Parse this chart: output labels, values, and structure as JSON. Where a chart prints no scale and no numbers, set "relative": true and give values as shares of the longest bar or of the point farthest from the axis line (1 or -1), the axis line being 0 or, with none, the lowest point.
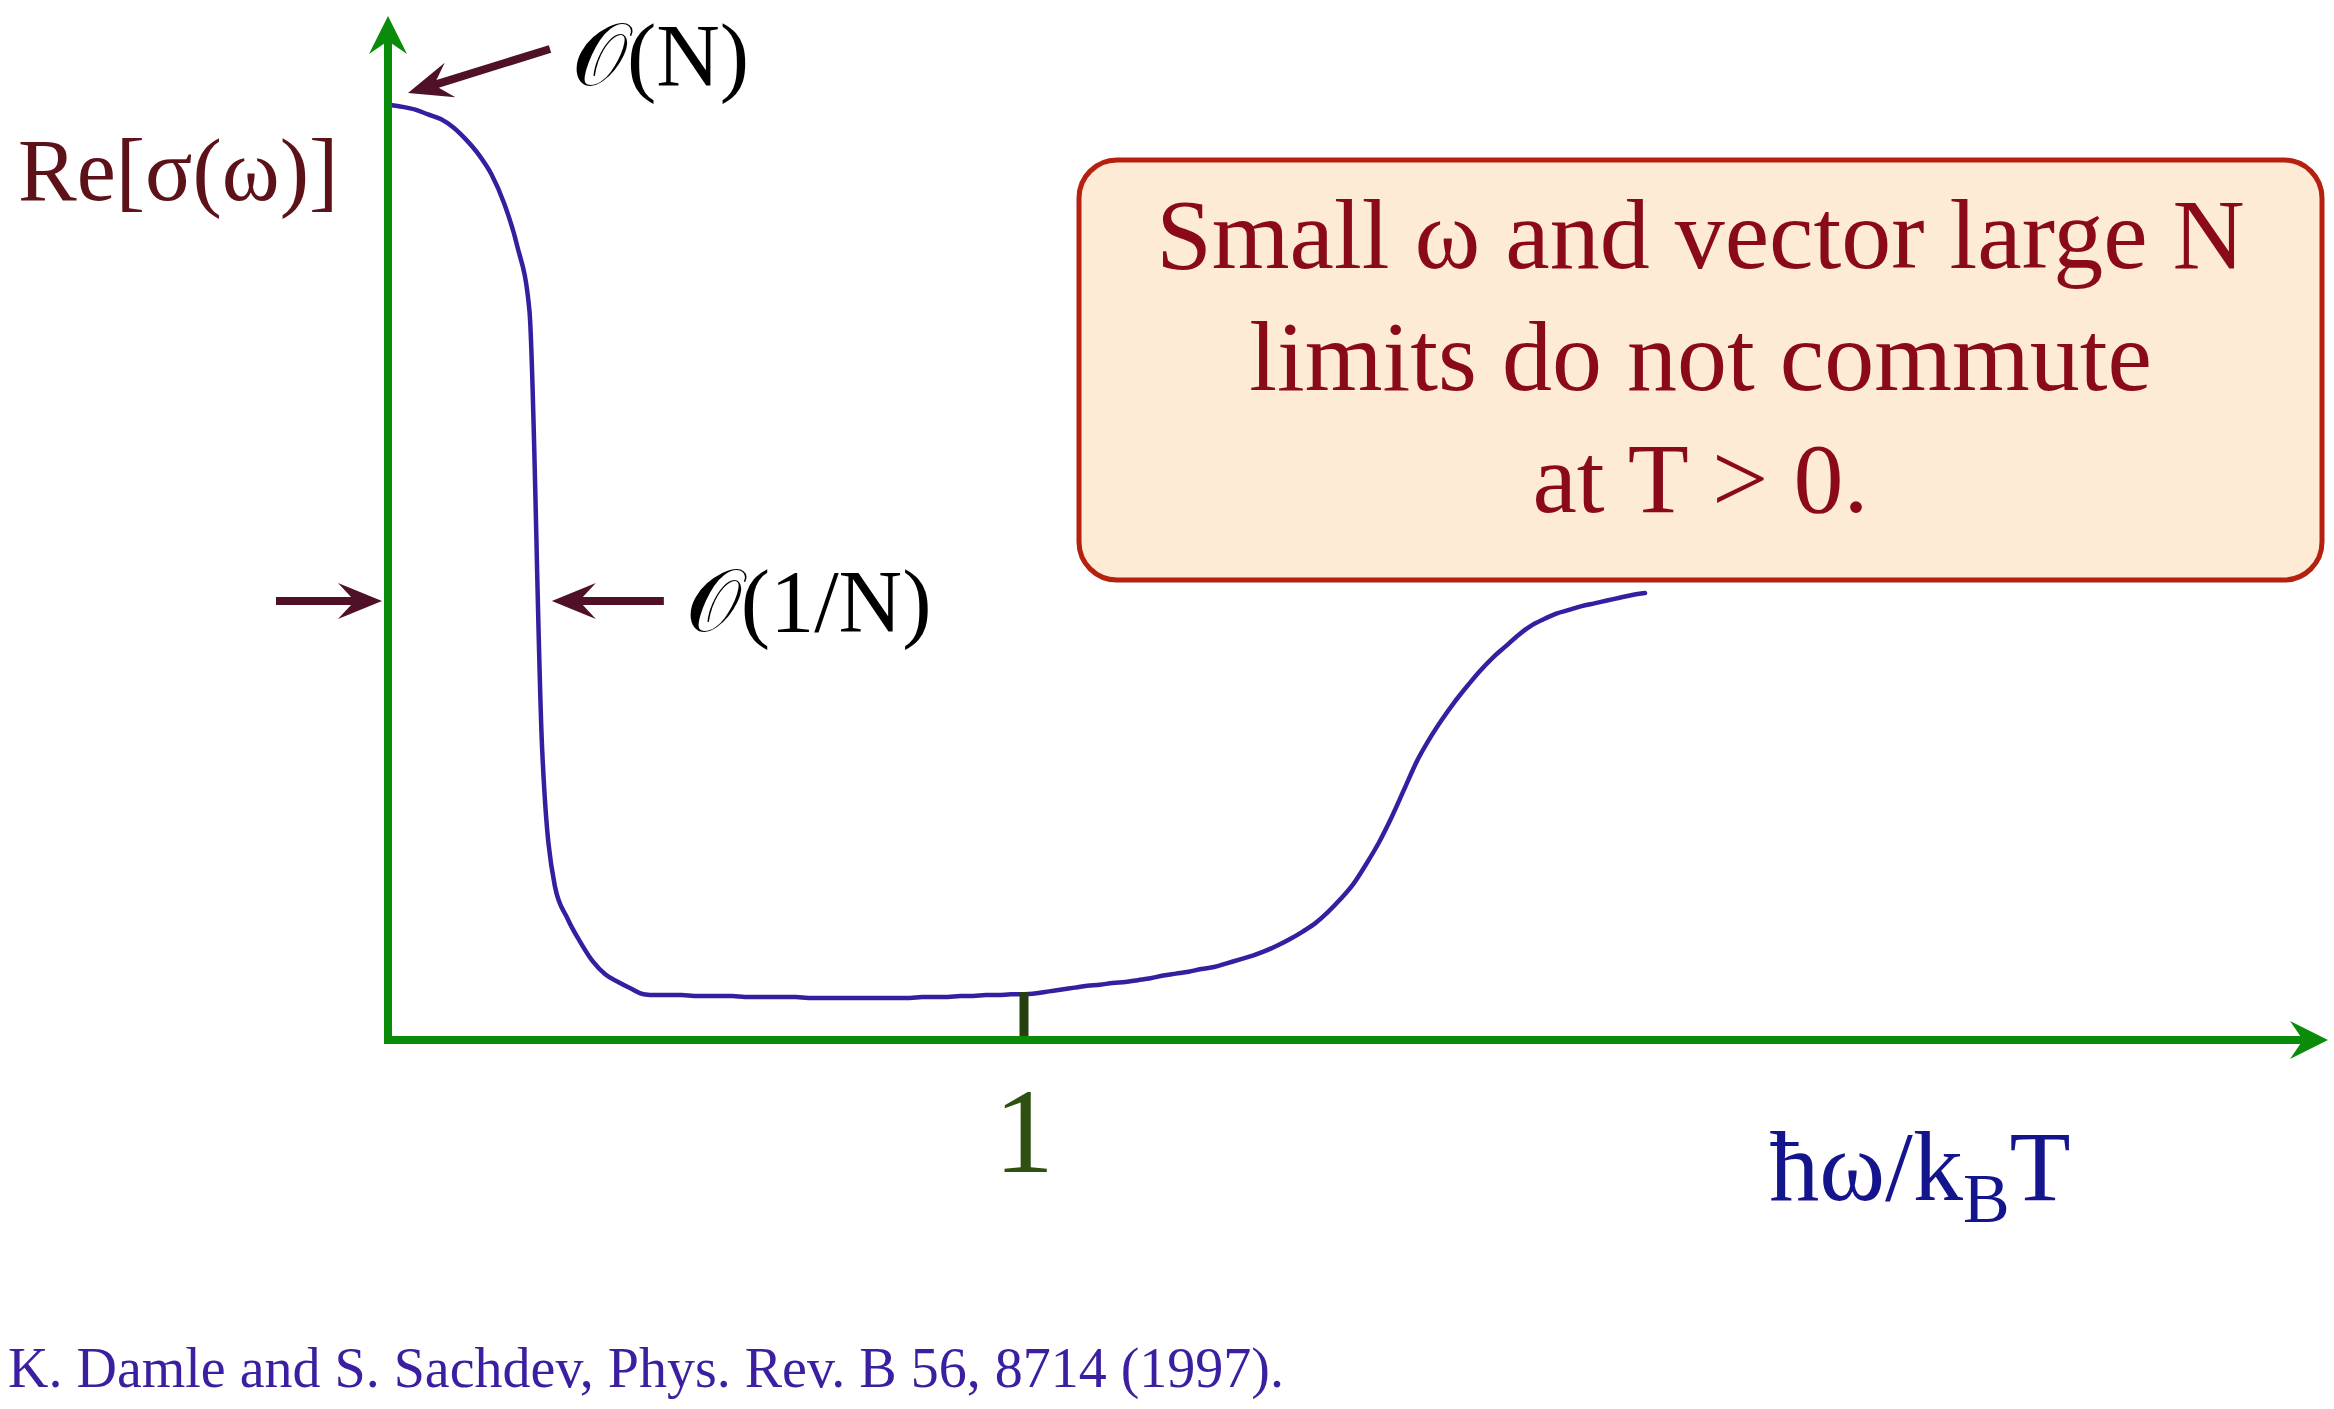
{
  "chart_data": {
    "type": "line",
    "relative": true,
    "xlabel": "ħω/k$_{B}$T",
    "ylabel": "Re[σ(ω)]",
    "categories": [
      null,
      null,
      null,
      null,
      null,
      null,
      null,
      null,
      null,
      null,
      null,
      null,
      null,
      null,
      null,
      null,
      null,
      null,
      null,
      null,
      null,
      null,
      null,
      null,
      null,
      null,
      null,
      null,
      null,
      null,
      null,
      null,
      null,
      null,
      null,
      null,
      null,
      null,
      null,
      null,
      null,
      null,
      null,
      null,
      null,
      null,
      null,
      null,
      null,
      null,
      null,
      null,
      null,
      null,
      null,
      null,
      null,
      null,
      null,
      null,
      null,
      null,
      null,
      null,
      null,
      null,
      null,
      null,
      null,
      null,
      null,
      null,
      null,
      null,
      null,
      null,
      null,
      null,
      null,
      null,
      null,
      null,
      null,
      null,
      null,
      null,
      null,
      null,
      null,
      null,
      null,
      null,
      null,
      null,
      null,
      null,
      null,
      null,
      null,
      null
    ],
    "series": [
      {
        "color": "#3320a0",
        "values": [
          1.0,
          0.998,
          0.995,
          0.99,
          0.985,
          0.976,
          0.963,
          0.947,
          0.926,
          0.895,
          0.851,
          0.78,
          0.312,
          0.165,
          0.13,
          0.105,
          0.084,
          0.07,
          0.062,
          0.055,
          0.049,
          0.048,
          0.048,
          0.048,
          0.047,
          0.047,
          0.047,
          0.047,
          0.046,
          0.046,
          0.046,
          0.046,
          0.046,
          0.045,
          0.045,
          0.045,
          0.045,
          0.045,
          0.045,
          0.045,
          0.045,
          0.045,
          0.046,
          0.046,
          0.046,
          0.047,
          0.047,
          0.048,
          0.048,
          0.049,
          0.049,
          0.05,
          0.052,
          0.054,
          0.056,
          0.058,
          0.059,
          0.061,
          0.062,
          0.064,
          0.066,
          0.069,
          0.071,
          0.073,
          0.076,
          0.078,
          0.082,
          0.086,
          0.09,
          0.095,
          0.101,
          0.108,
          0.116,
          0.125,
          0.137,
          0.151,
          0.167,
          0.188,
          0.211,
          0.238,
          0.268,
          0.298,
          0.322,
          0.343,
          0.362,
          0.379,
          0.395,
          0.409,
          0.421,
          0.433,
          0.443,
          0.45,
          0.456,
          0.46,
          0.464,
          0.467,
          0.47,
          0.473,
          0.476,
          0.478
        ]
      }
    ],
    "annotations": [
      "𝒪(N)",
      "𝒪(1/N)",
      "1",
      "Small ω and vector large N\nlimits do not commute\nat T > 0.",
      "K. Damle and S. Sachdev, Phys. Rev. B 56, 8714 (1997)."
    ]
  }
}
